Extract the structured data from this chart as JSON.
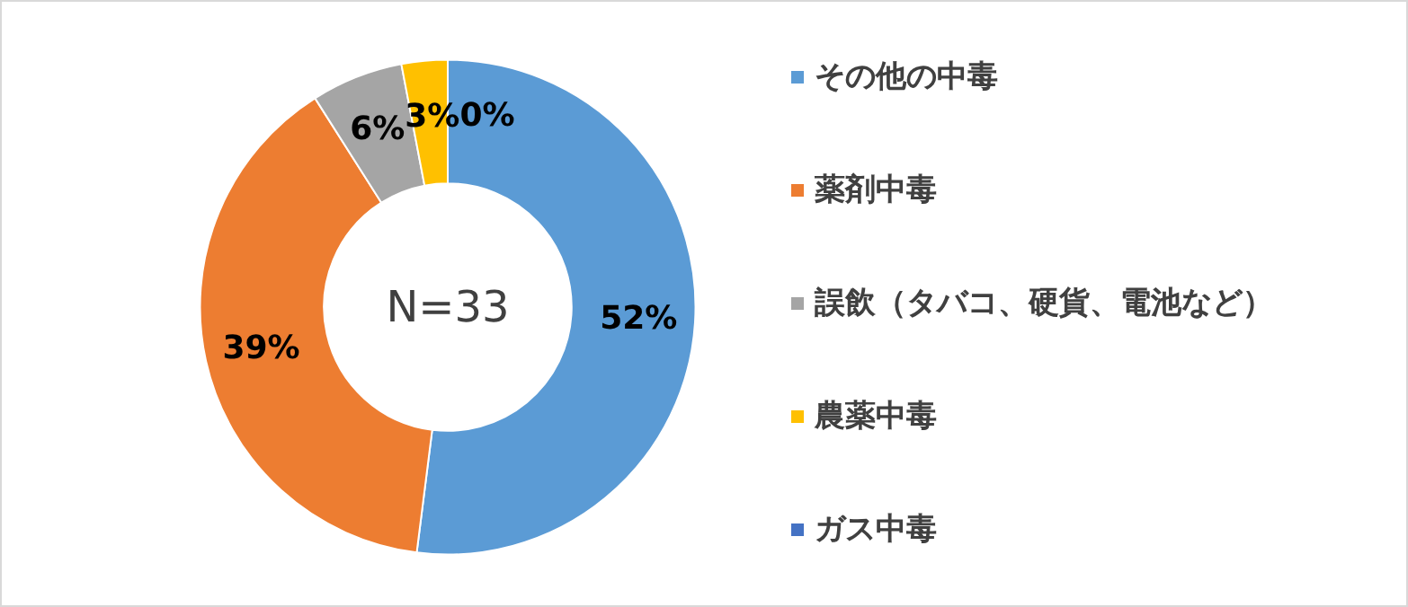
{
  "chart_data": {
    "type": "donut",
    "categories": [
      "その他の中毒",
      "薬剤中毒",
      "誤飲（タバコ、硬貨、電池など）",
      "農薬中毒",
      "ガス中毒"
    ],
    "values": [
      52,
      39,
      6,
      3,
      0
    ],
    "colors": [
      "#5b9bd5",
      "#ed7d31",
      "#a5a5a5",
      "#ffc000",
      "#4472c4"
    ],
    "value_labels": [
      "52%",
      "39%",
      "6%",
      "3%",
      "0%"
    ],
    "annotations": [
      "N=33"
    ],
    "legend": "right"
  }
}
